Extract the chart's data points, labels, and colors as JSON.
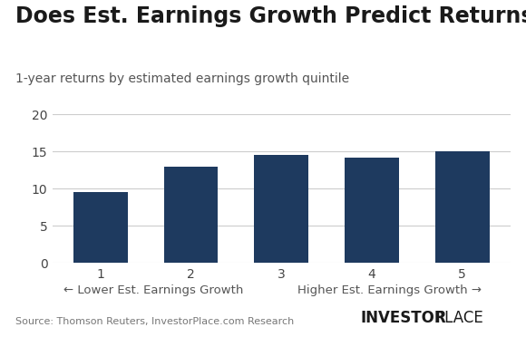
{
  "title": "Does Est. Earnings Growth Predict Returns?",
  "subtitle": "1-year returns by estimated earnings growth quintile",
  "categories": [
    1,
    2,
    3,
    4,
    5
  ],
  "values": [
    9.5,
    13.0,
    14.6,
    14.2,
    15.0
  ],
  "bar_color": "#1e3a5f",
  "ylim": [
    0,
    20
  ],
  "yticks": [
    0,
    5,
    10,
    15,
    20
  ],
  "xlabel_left": "← Lower Est. Earnings Growth",
  "xlabel_right": "Higher Est. Earnings Growth →",
  "source_text": "Source: Thomson Reuters, InvestorPlace.com Research",
  "brand_bold": "INVESTOR",
  "brand_normal": "PLACE",
  "background_color": "#ffffff",
  "title_fontsize": 17,
  "subtitle_fontsize": 10,
  "tick_fontsize": 10,
  "xlabel_fontsize": 9.5,
  "source_fontsize": 8,
  "brand_fontsize": 12
}
